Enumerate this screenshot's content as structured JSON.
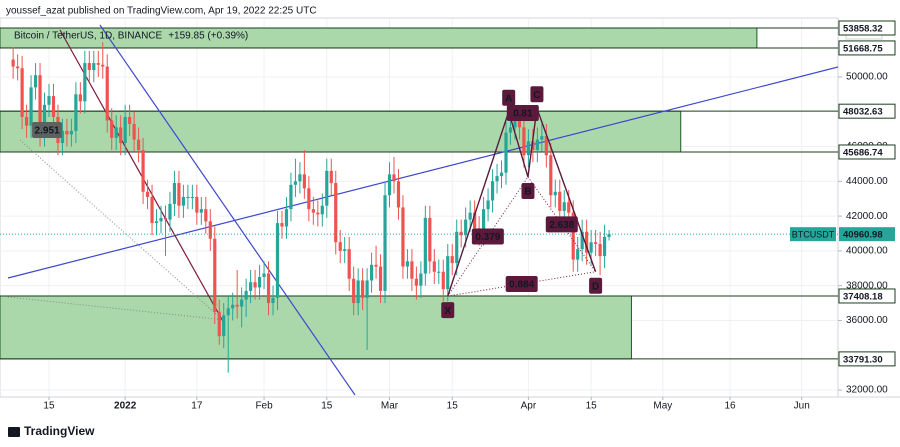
{
  "header": "youssef_azat published on TradingView.com, Apr 19, 2022 22:25 UTC",
  "footer": "TradingView",
  "chart_data": {
    "type": "candlestick",
    "title": "Bitcoin / TetherUS, 1D, BINANCE",
    "change": "+159.85 (+0.39%)",
    "symbol": "BTCUSDT",
    "currency": "USDT",
    "up_color": "#26a69a",
    "down_color": "#ef5350",
    "x": [
      6,
      7,
      8,
      9,
      10,
      11,
      12,
      13,
      14,
      15,
      16,
      17,
      18,
      19,
      20,
      21,
      22,
      23,
      24,
      25,
      26,
      27,
      28,
      29,
      30,
      31,
      32,
      33,
      34,
      35,
      36,
      37,
      38,
      39,
      40,
      41,
      42,
      43,
      44,
      45,
      46,
      47,
      48,
      49,
      50,
      51,
      52,
      53,
      54,
      55,
      56,
      57,
      58,
      59,
      60,
      61,
      62,
      63,
      64,
      65,
      66,
      67,
      68,
      69,
      70,
      71,
      72,
      73,
      74,
      75,
      76,
      77,
      78,
      79,
      80,
      81,
      82,
      83,
      84,
      85,
      86,
      87,
      88,
      89,
      90,
      91,
      92,
      93,
      94,
      95,
      96,
      97,
      98,
      99,
      100,
      101,
      102,
      103,
      104,
      105,
      106,
      107,
      108,
      109,
      110,
      111,
      112,
      113,
      114,
      115,
      116,
      117,
      118,
      119,
      120,
      121,
      122,
      123,
      124,
      125,
      126,
      127,
      128,
      129,
      130,
      131,
      132,
      133,
      134,
      135,
      136,
      137,
      138,
      139
    ],
    "open": [
      51000,
      50600,
      50500,
      47700,
      47200,
      49400,
      50100,
      46700,
      48400,
      48900,
      47700,
      46200,
      46900,
      46700,
      46900,
      49000,
      48600,
      50800,
      50400,
      50800,
      50700,
      50600,
      47500,
      46500,
      47100,
      46200,
      47700,
      47300,
      46400,
      45800,
      43400,
      43100,
      41600,
      41700,
      41900,
      41800,
      42700,
      43900,
      42600,
      43100,
      43100,
      43100,
      42200,
      42400,
      41700,
      40700,
      36500,
      35100,
      36300,
      36700,
      36900,
      36800,
      37200,
      37700,
      38200,
      37900,
      38500,
      38700,
      37000,
      37300,
      41600,
      41400,
      42400,
      43800,
      44000,
      44400,
      43600,
      42400,
      42200,
      42100,
      42600,
      44600,
      43900,
      40500,
      40000,
      40100,
      38400,
      37000,
      38300,
      37300,
      38300,
      39200,
      39100,
      37700,
      43200,
      44400,
      44000,
      42500,
      39100,
      39400,
      38400,
      38000,
      38700,
      41900,
      39400,
      38800,
      38800,
      37800,
      39700,
      39300,
      41100,
      40900,
      41800,
      42200,
      41300,
      41000,
      42400,
      42900,
      44000,
      44300,
      44500,
      46800,
      47100,
      47500,
      47100,
      45500,
      46300,
      45800,
      46400,
      46600,
      45500,
      43200,
      43400,
      42300,
      42800,
      42200,
      39500,
      40100,
      41100,
      39900,
      40500,
      40400,
      39700,
      40800
    ],
    "high": [
      51700,
      51300,
      51200,
      48400,
      50100,
      50800,
      50800,
      49100,
      49600,
      49600,
      48400,
      47600,
      47600,
      47600,
      49700,
      49700,
      51500,
      51500,
      51500,
      51500,
      52000,
      51300,
      48200,
      47800,
      47800,
      48400,
      48400,
      48000,
      47100,
      46500,
      44100,
      43800,
      42400,
      42600,
      42600,
      43400,
      44600,
      44600,
      43800,
      43800,
      43800,
      43800,
      43100,
      43100,
      42400,
      41400,
      37200,
      37000,
      37400,
      37600,
      38900,
      37900,
      38400,
      38900,
      38900,
      39200,
      39400,
      39400,
      38000,
      42300,
      42300,
      43100,
      44500,
      45300,
      45100,
      45800,
      44300,
      43100,
      42900,
      43300,
      45300,
      45300,
      44600,
      41200,
      40800,
      40800,
      39100,
      39000,
      39000,
      39000,
      39900,
      40300,
      39800,
      43900,
      45100,
      45400,
      44700,
      43200,
      40100,
      40100,
      39100,
      39400,
      42600,
      42600,
      40100,
      39500,
      39500,
      40400,
      40400,
      41800,
      41800,
      42500,
      42900,
      42900,
      42000,
      43100,
      43600,
      44700,
      45000,
      45200,
      47500,
      48200,
      48200,
      48200,
      47800,
      47000,
      47000,
      47100,
      47300,
      47300,
      46200,
      44100,
      44100,
      43500,
      43500,
      42900,
      40800,
      41800,
      41800,
      41200,
      41200,
      41100,
      41500,
      41200
    ],
    "low": [
      49900,
      49800,
      47000,
      46500,
      46500,
      48700,
      46000,
      46000,
      47700,
      47000,
      45500,
      45500,
      46000,
      46000,
      46200,
      47900,
      47900,
      49700,
      49700,
      50000,
      49900,
      46800,
      45800,
      45800,
      45500,
      45500,
      46600,
      45700,
      45100,
      42700,
      42400,
      40900,
      40900,
      41000,
      39700,
      41100,
      42000,
      41900,
      41900,
      42400,
      42400,
      41500,
      41500,
      41000,
      40000,
      35800,
      34600,
      34400,
      33000,
      36000,
      36100,
      35600,
      36200,
      37000,
      37200,
      37200,
      37800,
      36300,
      36300,
      36600,
      40700,
      40700,
      41700,
      43100,
      43300,
      43000,
      41700,
      41500,
      41400,
      41400,
      41900,
      43200,
      39800,
      39300,
      39300,
      37700,
      36300,
      36300,
      36600,
      34300,
      37600,
      38400,
      37000,
      37000,
      42500,
      43300,
      41800,
      38400,
      38400,
      37700,
      37200,
      37300,
      38000,
      38700,
      38100,
      38100,
      37100,
      37100,
      38600,
      38600,
      40200,
      40200,
      41100,
      40600,
      40300,
      40300,
      41700,
      42200,
      43300,
      43600,
      43800,
      46100,
      46400,
      46400,
      44800,
      44800,
      45100,
      45100,
      45700,
      44800,
      42500,
      42500,
      41600,
      41600,
      41500,
      38800,
      38800,
      39400,
      39200,
      39200,
      39700,
      38600,
      39000,
      40600
    ],
    "close": [
      50600,
      50500,
      47700,
      47200,
      49400,
      50100,
      46700,
      48400,
      48900,
      47700,
      46200,
      46900,
      46700,
      46900,
      49000,
      48600,
      50800,
      50400,
      50800,
      50700,
      50600,
      47500,
      46500,
      47100,
      46200,
      47700,
      47300,
      46400,
      45800,
      43400,
      43100,
      41600,
      41700,
      41900,
      41800,
      42700,
      43900,
      42600,
      43100,
      43100,
      43100,
      42200,
      42400,
      41700,
      40700,
      36500,
      35100,
      36300,
      36700,
      36900,
      36800,
      37200,
      37700,
      38200,
      37900,
      38500,
      38700,
      37000,
      37300,
      41600,
      41400,
      42400,
      43800,
      44000,
      44400,
      43600,
      42400,
      42200,
      42100,
      42600,
      44600,
      43900,
      40500,
      40000,
      40100,
      38400,
      37000,
      38300,
      37300,
      38300,
      39200,
      39100,
      37700,
      43200,
      44400,
      44000,
      42500,
      39100,
      39400,
      38400,
      38000,
      38700,
      41900,
      39400,
      38800,
      38800,
      37800,
      39700,
      39300,
      41100,
      40900,
      41800,
      42200,
      41300,
      41000,
      42400,
      42900,
      44000,
      44300,
      44500,
      46800,
      47100,
      47500,
      47100,
      45500,
      46300,
      45800,
      46400,
      46600,
      45500,
      43200,
      43400,
      42300,
      42800,
      42200,
      39500,
      40100,
      41100,
      39900,
      40500,
      40400,
      39700,
      40800,
      40960.98
    ],
    "xlim": [
      4.85,
      190.1
    ],
    "xticks": [
      {
        "value": 14,
        "label": "15"
      },
      {
        "value": 31,
        "label": "2022"
      },
      {
        "value": 47,
        "label": "17"
      },
      {
        "value": 62,
        "label": "Feb"
      },
      {
        "value": 76,
        "label": "15"
      },
      {
        "value": 90,
        "label": "Mar"
      },
      {
        "value": 104,
        "label": "15"
      },
      {
        "value": 121,
        "label": "Apr"
      },
      {
        "value": 135,
        "label": "15"
      },
      {
        "value": 151,
        "label": "May"
      },
      {
        "value": 166,
        "label": "16"
      },
      {
        "value": 182,
        "label": "Jun"
      }
    ],
    "ylim": [
      31600,
      53390
    ],
    "yticks": [
      {
        "value": 32000,
        "label": "32000.00"
      },
      {
        "value": 36000,
        "label": "36000.00"
      },
      {
        "value": 38000,
        "label": "38000.00"
      },
      {
        "value": 40000,
        "label": "40000.00"
      },
      {
        "value": 42000,
        "label": "42000.00"
      },
      {
        "value": 44000,
        "label": "44000.00"
      },
      {
        "value": 46000,
        "label": "46000.00"
      },
      {
        "value": 50000,
        "label": "50000.00"
      }
    ],
    "grid": true,
    "levels": [
      {
        "value": 53858.32,
        "label": "53858.32"
      },
      {
        "value": 51668.75,
        "label": "51668.75"
      },
      {
        "value": 48032.63,
        "label": "48032.63"
      },
      {
        "value": 45686.74,
        "label": "45686.74"
      },
      {
        "value": 37408.18,
        "label": "37408.18"
      },
      {
        "value": 33791.3,
        "label": "33791.30"
      }
    ],
    "zones": [
      {
        "top": 53858.32,
        "bottom": 51668.75,
        "end": 172
      },
      {
        "top": 48032.63,
        "bottom": 45686.74,
        "end": 155
      },
      {
        "top": 37408.18,
        "bottom": 33791.3,
        "end": 144
      }
    ],
    "last_price": {
      "value": 40960.98,
      "label": "40960.98"
    },
    "pattern": {
      "points": [
        {
          "label": "X",
          "x": 103,
          "y": 37400
        },
        {
          "label": "A",
          "x": 116.6,
          "y": 48000
        },
        {
          "label": "B",
          "x": 120.9,
          "y": 44250
        },
        {
          "label": "C",
          "x": 122.9,
          "y": 48200
        },
        {
          "label": "D",
          "x": 136,
          "y": 38800
        }
      ],
      "ratios": [
        "0.379",
        "0.81",
        "2.638",
        "0.884"
      ]
    },
    "annotations": [
      {
        "text": "2.951",
        "x": 10,
        "y": 46950
      }
    ]
  }
}
